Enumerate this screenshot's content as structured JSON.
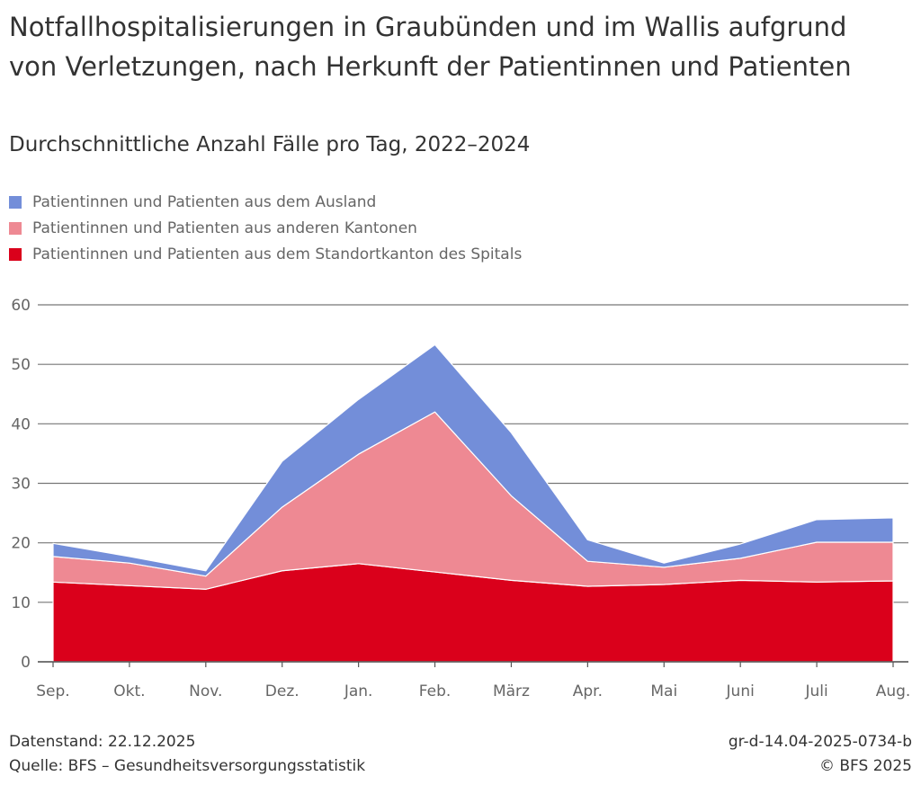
{
  "chart_data": {
    "type": "stacked-area",
    "title": "Notfallhospitalisierungen in Graubünden und im Wallis aufgrund von Verletzungen, nach Herkunft der Patientinnen und Patienten",
    "subtitle": "Durchschnittliche Anzahl Fälle pro Tag, 2022–2024",
    "categories": [
      "Sep.",
      "Okt.",
      "Nov.",
      "Dez.",
      "Jan.",
      "Feb.",
      "März",
      "Apr.",
      "Mai",
      "Juni",
      "Juli",
      "Aug."
    ],
    "series": [
      {
        "name": "Patientinnen und Patienten aus dem Ausland",
        "color": "#738ed9",
        "values": [
          2.2,
          1.1,
          0.9,
          7.7,
          9.2,
          11.3,
          10.6,
          3.6,
          0.7,
          2.4,
          3.8,
          4.1
        ]
      },
      {
        "name": "Patientinnen und Patienten aus anderen Kantonen",
        "color": "#ee8993",
        "values": [
          4.3,
          3.8,
          2.2,
          10.7,
          18.4,
          26.9,
          14.2,
          4.2,
          2.9,
          3.7,
          6.7,
          6.5
        ]
      },
      {
        "name": "Patientinnen und Patienten aus dem Standortkanton des Spitals",
        "color": "#da001b",
        "values": [
          13.4,
          12.8,
          12.2,
          15.3,
          16.5,
          15.1,
          13.7,
          12.7,
          13.0,
          13.7,
          13.4,
          13.6
        ]
      }
    ],
    "ylim": [
      0,
      60
    ],
    "yticks": [
      0,
      10,
      20,
      30,
      40,
      50,
      60
    ],
    "grid": true,
    "footer_left": [
      "Datenstand: 22.12.2025",
      "Quelle: BFS – Gesundheitsversorgungsstatistik"
    ],
    "footer_right": [
      "gr-d-14.04-2025-0734-b",
      "© BFS 2025"
    ]
  }
}
